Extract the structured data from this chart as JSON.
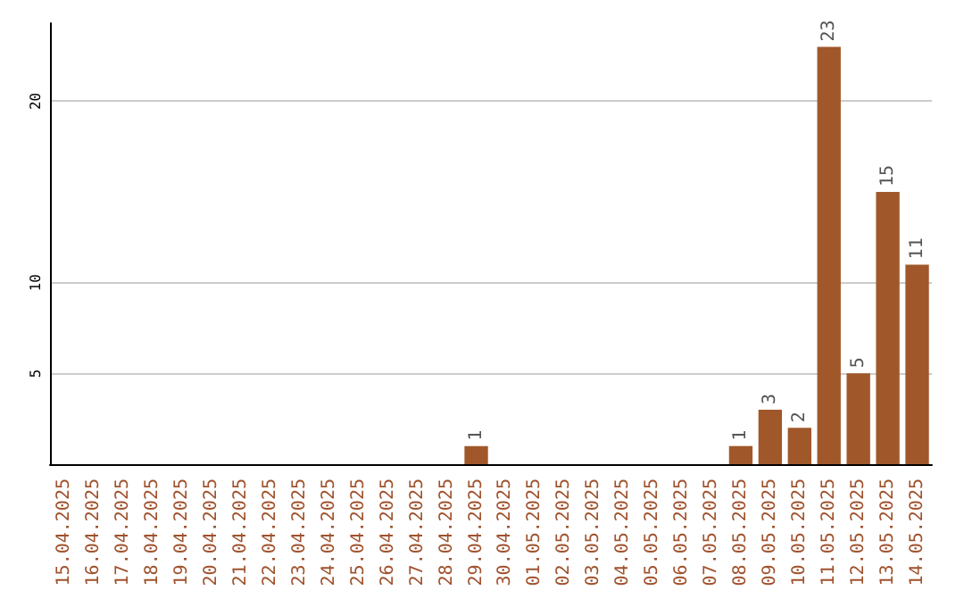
{
  "chart_data": {
    "type": "bar",
    "categories": [
      "15.04.2025",
      "16.04.2025",
      "17.04.2025",
      "18.04.2025",
      "19.04.2025",
      "20.04.2025",
      "21.04.2025",
      "22.04.2025",
      "23.04.2025",
      "24.04.2025",
      "25.04.2025",
      "26.04.2025",
      "27.04.2025",
      "28.04.2025",
      "29.04.2025",
      "30.04.2025",
      "01.05.2025",
      "02.05.2025",
      "03.05.2025",
      "04.05.2025",
      "05.05.2025",
      "06.05.2025",
      "07.05.2025",
      "08.05.2025",
      "09.05.2025",
      "10.05.2025",
      "11.05.2025",
      "12.05.2025",
      "13.05.2025",
      "14.05.2025"
    ],
    "values": [
      0,
      0,
      0,
      0,
      0,
      0,
      0,
      0,
      0,
      0,
      0,
      0,
      0,
      0,
      1,
      0,
      0,
      0,
      0,
      0,
      0,
      0,
      0,
      1,
      3,
      2,
      23,
      5,
      15,
      11
    ],
    "value_labels": [
      null,
      null,
      null,
      null,
      null,
      null,
      null,
      null,
      null,
      null,
      null,
      null,
      null,
      null,
      "1",
      null,
      null,
      null,
      null,
      null,
      null,
      null,
      null,
      "1",
      "3",
      "2",
      "23",
      "5",
      "15",
      "11"
    ],
    "color": "#a0582a",
    "ylim": [
      0,
      24.3
    ],
    "yticks": [
      5,
      10,
      20
    ],
    "grid": "y"
  }
}
